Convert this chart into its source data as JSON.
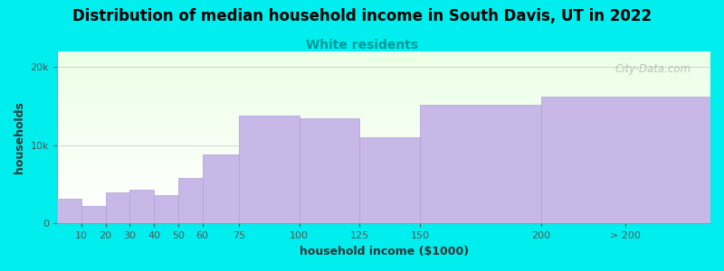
{
  "title": "Distribution of median household income in South Davis, UT in 2022",
  "subtitle": "White residents",
  "xlabel": "household income ($1000)",
  "ylabel": "households",
  "background_color": "#00EEEE",
  "bar_color": "#C8B8E8",
  "bar_edge_color": "#B0A0D8",
  "categories": [
    "10",
    "20",
    "30",
    "40",
    "50",
    "60",
    "75",
    "100",
    "125",
    "150",
    "200",
    "> 200"
  ],
  "left_edges": [
    0,
    10,
    20,
    30,
    40,
    50,
    60,
    75,
    100,
    125,
    150,
    200
  ],
  "widths": [
    10,
    10,
    10,
    10,
    10,
    10,
    15,
    25,
    25,
    25,
    50,
    70
  ],
  "values": [
    3200,
    2200,
    4000,
    4300,
    3600,
    5800,
    8800,
    13800,
    13500,
    11000,
    15200,
    16200
  ],
  "ylim": [
    0,
    22000
  ],
  "yticks": [
    0,
    10000,
    20000
  ],
  "ytick_labels": [
    "0",
    "10k",
    "20k"
  ],
  "xtick_positions": [
    10,
    20,
    30,
    40,
    50,
    60,
    75,
    100,
    125,
    150,
    200,
    235
  ],
  "xtick_labels": [
    "10",
    "20",
    "30",
    "40",
    "50",
    "60",
    "75",
    "100",
    "125",
    "150",
    "200",
    "> 200"
  ],
  "watermark": "City-Data.com",
  "title_fontsize": 12,
  "subtitle_fontsize": 10,
  "subtitle_color": "#009999",
  "axis_label_fontsize": 9,
  "tick_fontsize": 8,
  "xlim": [
    0,
    270
  ]
}
